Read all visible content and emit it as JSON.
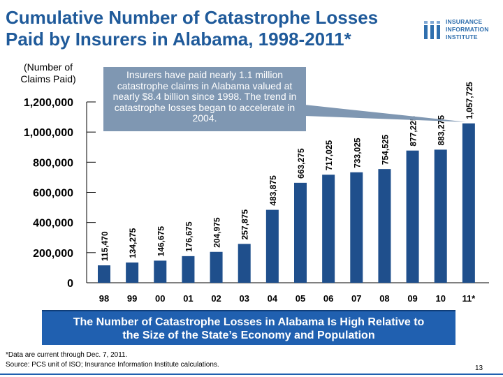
{
  "header": {
    "title_line1": "Cumulative Number of Catastrophe Losses",
    "title_line2": "Paid by Insurers in Alabama, 1998-2011*"
  },
  "logo": {
    "line1": "INSURANCE",
    "line2": "INFORMATION",
    "line3": "INSTITUTE"
  },
  "unit_label": {
    "line1": "(Number of",
    "line2": "Claims Paid)"
  },
  "callout_text": "Insurers have paid nearly 1.1 million catastrophe claims in Alabama valued at nearly $8.4 billion since 1998.  The trend in catastrophe losses began to accelerate in 2004.",
  "banner": {
    "line1": "The Number of Catastrophe Losses in Alabama Is High Relative to",
    "line2": "the Size of the State’s Economy and Population"
  },
  "footnote": {
    "line1": "*Data are current through Dec. 7, 2011.",
    "line2": "Source: PCS unit of ISO; Insurance Information Institute calculations."
  },
  "page_number": "13",
  "colors": {
    "title": "#1f5a9a",
    "bar": "#1f4f8c",
    "banner": "#2060b0",
    "callout": "#7f97b2"
  },
  "chart_data": {
    "type": "bar",
    "categories": [
      "98",
      "99",
      "00",
      "01",
      "02",
      "03",
      "04",
      "05",
      "06",
      "07",
      "08",
      "09",
      "10",
      "11*"
    ],
    "values": [
      115470,
      134275,
      146675,
      176675,
      204975,
      257875,
      483875,
      663275,
      717025,
      733025,
      754525,
      877225,
      883275,
      1057725
    ],
    "data_labels": [
      "115,470",
      "134,275",
      "146,675",
      "176,675",
      "204,975",
      "257,875",
      "483,875",
      "663,275",
      "717,025",
      "733,025",
      "754,525",
      "877,225",
      "883,275",
      "1,057,725"
    ],
    "yticks": [
      0,
      200000,
      400000,
      600000,
      800000,
      1000000,
      1200000
    ],
    "ytick_labels": [
      "0",
      "200,000",
      "400,000",
      "600,000",
      "800,000",
      "1,000,000",
      "1,200,000"
    ],
    "ylim": [
      0,
      1200000
    ],
    "grid": false,
    "legend": "none"
  }
}
